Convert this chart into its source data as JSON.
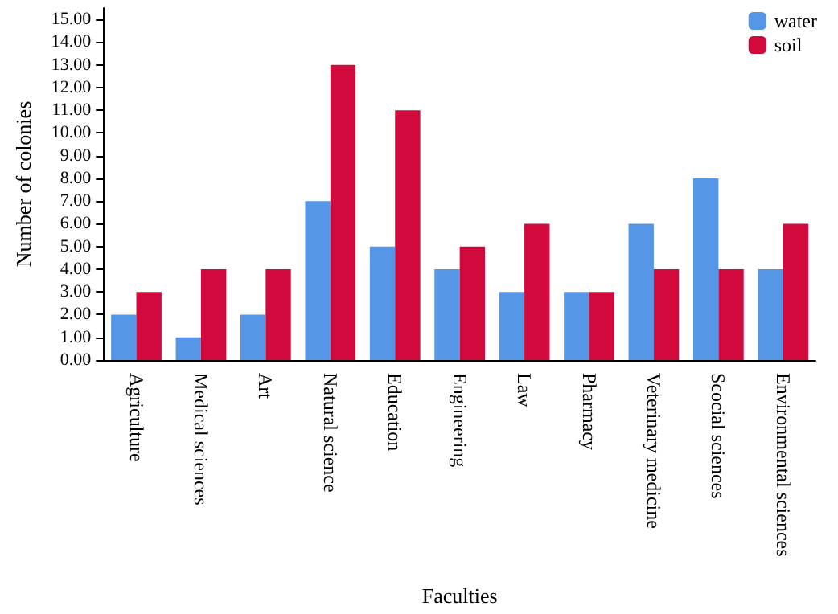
{
  "chart_data": {
    "type": "bar",
    "xlabel": "Faculties",
    "ylabel": "Number of colonies",
    "categories": [
      "Agriculture",
      "Medical sciences",
      "Art",
      "Natural science",
      "Education",
      "Engineering",
      "Law",
      "Pharmacy",
      "Veterinary medicine",
      "Scocial sciences",
      "Environmental sciences"
    ],
    "series": [
      {
        "name": "water",
        "color": "#5596e6",
        "values": [
          2,
          1,
          2,
          7,
          5,
          4,
          3,
          3,
          6,
          8,
          4
        ]
      },
      {
        "name": "soil",
        "color": "#d2093c",
        "values": [
          3,
          4,
          4,
          13,
          11,
          5,
          6,
          3,
          4,
          4,
          6
        ]
      }
    ],
    "ylim": [
      0,
      15.5
    ],
    "yticks": [
      {
        "value": 0,
        "label": "0.00"
      },
      {
        "value": 1,
        "label": "1.00"
      },
      {
        "value": 2,
        "label": "2.00"
      },
      {
        "value": 3,
        "label": "3.00"
      },
      {
        "value": 4,
        "label": "4.00"
      },
      {
        "value": 5,
        "label": "5.00"
      },
      {
        "value": 6,
        "label": "6.00"
      },
      {
        "value": 7,
        "label": "7.00"
      },
      {
        "value": 8,
        "label": "8.00"
      },
      {
        "value": 9,
        "label": "9.00"
      },
      {
        "value": 10,
        "label": "10.00"
      },
      {
        "value": 11,
        "label": "11.00"
      },
      {
        "value": 12,
        "label": "12.00"
      },
      {
        "value": 13,
        "label": "13.00"
      },
      {
        "value": 14,
        "label": "14.00"
      },
      {
        "value": 15,
        "label": "15.00"
      }
    ],
    "grid": false,
    "legend": "top right"
  }
}
